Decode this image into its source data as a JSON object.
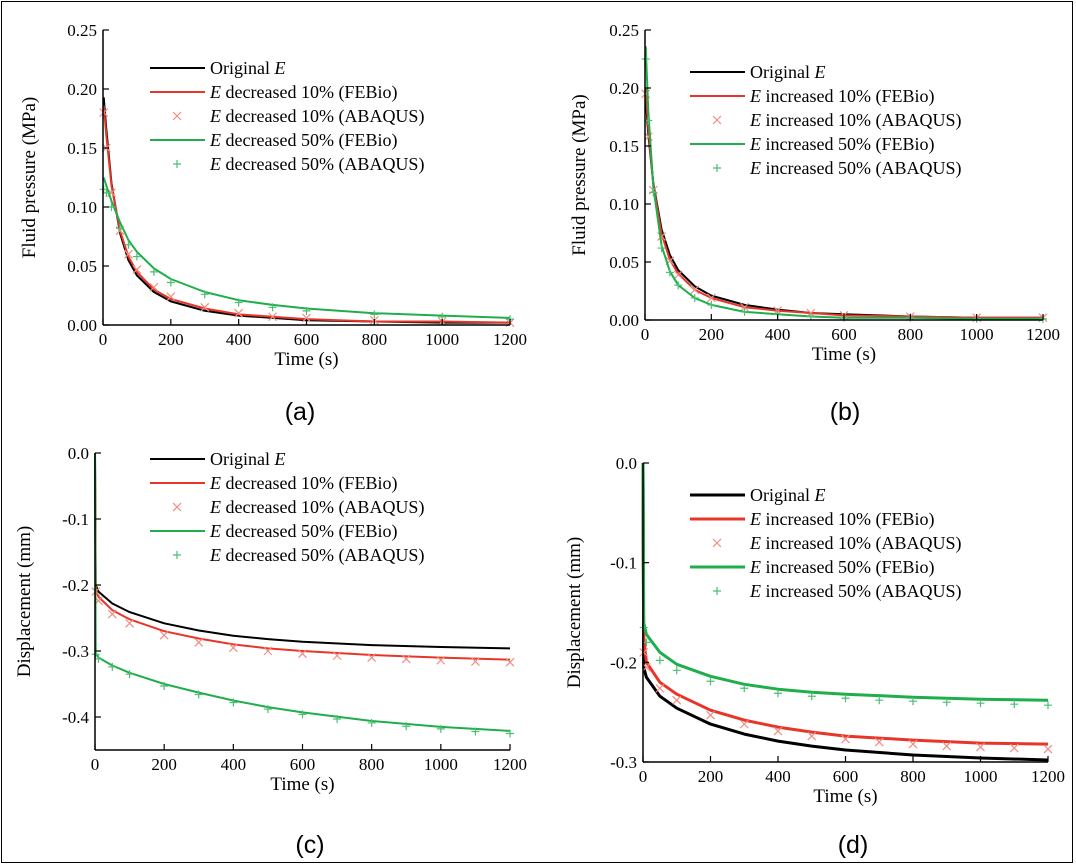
{
  "chart_data": [
    {
      "id": "a",
      "type": "line",
      "label": "(a)",
      "xlabel": "Time (s)",
      "ylabel": "Fluid pressure (MPa)",
      "xlim": [
        0,
        1200
      ],
      "ylim": [
        0,
        0.25
      ],
      "xticks": [
        0,
        200,
        400,
        600,
        800,
        1000,
        1200
      ],
      "yticks": [
        0.0,
        0.05,
        0.1,
        0.15,
        0.2,
        0.25
      ],
      "ytick_labels": [
        "0.00",
        "0.05",
        "0.10",
        "0.15",
        "0.20",
        "0.25"
      ],
      "legend_position": "top-right",
      "series": [
        {
          "name": "Original E",
          "prefix": "Original ",
          "italic": "E",
          "suffix": "",
          "kind": "line",
          "color": "#000000",
          "x": [
            2,
            10,
            25,
            50,
            75,
            100,
            150,
            200,
            300,
            400,
            500,
            600,
            800,
            1000,
            1200
          ],
          "y": [
            0.193,
            0.165,
            0.12,
            0.078,
            0.055,
            0.042,
            0.028,
            0.02,
            0.012,
            0.008,
            0.006,
            0.004,
            0.003,
            0.002,
            0.002
          ]
        },
        {
          "name": "E decreased 10% (FEBio)",
          "prefix": "",
          "italic": "E",
          "suffix": " decreased 10% (FEBio)",
          "kind": "line",
          "color": "#e8352a",
          "x": [
            2,
            10,
            25,
            50,
            75,
            100,
            150,
            200,
            300,
            400,
            500,
            600,
            800,
            1000,
            1200
          ],
          "y": [
            0.186,
            0.16,
            0.118,
            0.08,
            0.058,
            0.045,
            0.03,
            0.022,
            0.014,
            0.009,
            0.007,
            0.005,
            0.003,
            0.003,
            0.002
          ]
        },
        {
          "name": "E decreased 10% (ABAQUS)",
          "prefix": "",
          "italic": "E",
          "suffix": " decreased 10% (ABAQUS)",
          "kind": "marker-x",
          "color": "#f28c80",
          "x": [
            2,
            10,
            25,
            50,
            75,
            100,
            150,
            200,
            300,
            400,
            500,
            600,
            800,
            1000,
            1200
          ],
          "y": [
            0.18,
            0.15,
            0.112,
            0.08,
            0.06,
            0.047,
            0.032,
            0.024,
            0.015,
            0.01,
            0.007,
            0.006,
            0.004,
            0.003,
            0.002
          ]
        },
        {
          "name": "E decreased 50% (FEBio)",
          "prefix": "",
          "italic": "E",
          "suffix": " decreased 50% (FEBio)",
          "kind": "line",
          "color": "#1fae4b",
          "x": [
            2,
            10,
            25,
            50,
            75,
            100,
            150,
            200,
            300,
            400,
            500,
            600,
            800,
            1000,
            1200
          ],
          "y": [
            0.125,
            0.118,
            0.105,
            0.087,
            0.072,
            0.062,
            0.048,
            0.039,
            0.028,
            0.021,
            0.017,
            0.014,
            0.01,
            0.008,
            0.006
          ]
        },
        {
          "name": "E decreased 50% (ABAQUS)",
          "prefix": "",
          "italic": "E",
          "suffix": " decreased 50% (ABAQUS)",
          "kind": "marker-plus",
          "color": "#4cbf73",
          "x": [
            2,
            10,
            25,
            50,
            75,
            100,
            150,
            200,
            300,
            400,
            500,
            600,
            800,
            1000,
            1200
          ],
          "y": [
            0.115,
            0.112,
            0.1,
            0.082,
            0.068,
            0.058,
            0.045,
            0.036,
            0.026,
            0.019,
            0.015,
            0.012,
            0.009,
            0.007,
            0.005
          ]
        }
      ]
    },
    {
      "id": "b",
      "type": "line",
      "label": "(b)",
      "xlabel": "Time (s)",
      "ylabel": "Fluid pressure (MPa)",
      "xlim": [
        0,
        1200
      ],
      "ylim": [
        0,
        0.25
      ],
      "xticks": [
        0,
        200,
        400,
        600,
        800,
        1000,
        1200
      ],
      "yticks": [
        0.0,
        0.05,
        0.1,
        0.15,
        0.2,
        0.25
      ],
      "ytick_labels": [
        "0.00",
        "0.05",
        "0.10",
        "0.15",
        "0.20",
        "0.25"
      ],
      "legend_position": "top-right",
      "series": [
        {
          "name": "Original E",
          "prefix": "Original ",
          "italic": "E",
          "suffix": "",
          "kind": "line",
          "color": "#000000",
          "x": [
            2,
            10,
            25,
            50,
            75,
            100,
            150,
            200,
            300,
            400,
            500,
            600,
            800,
            1000,
            1200
          ],
          "y": [
            0.19,
            0.16,
            0.118,
            0.078,
            0.056,
            0.043,
            0.029,
            0.021,
            0.013,
            0.009,
            0.006,
            0.005,
            0.003,
            0.002,
            0.002
          ]
        },
        {
          "name": "E increased 10% (FEBio)",
          "prefix": "",
          "italic": "E",
          "suffix": " increased 10% (FEBio)",
          "kind": "line",
          "color": "#e8352a",
          "x": [
            2,
            10,
            25,
            50,
            75,
            100,
            150,
            200,
            300,
            400,
            500,
            600,
            800,
            1000,
            1200
          ],
          "y": [
            0.2,
            0.165,
            0.117,
            0.074,
            0.052,
            0.04,
            0.026,
            0.019,
            0.011,
            0.008,
            0.006,
            0.004,
            0.003,
            0.002,
            0.002
          ]
        },
        {
          "name": "E increased 10% (ABAQUS)",
          "prefix": "",
          "italic": "E",
          "suffix": " increased 10% (ABAQUS)",
          "kind": "marker-x",
          "color": "#f28c80",
          "x": [
            2,
            10,
            25,
            50,
            75,
            100,
            150,
            200,
            300,
            400,
            500,
            600,
            800,
            1000,
            1200
          ],
          "y": [
            0.195,
            0.158,
            0.112,
            0.072,
            0.051,
            0.039,
            0.026,
            0.019,
            0.011,
            0.008,
            0.006,
            0.004,
            0.003,
            0.002,
            0.002
          ]
        },
        {
          "name": "E increased 50% (FEBio)",
          "prefix": "",
          "italic": "E",
          "suffix": " increased 50% (FEBio)",
          "kind": "line",
          "color": "#1fae4b",
          "x": [
            2,
            10,
            25,
            50,
            75,
            100,
            150,
            200,
            300,
            400,
            500,
            600,
            800,
            1000,
            1200
          ],
          "y": [
            0.236,
            0.18,
            0.115,
            0.064,
            0.042,
            0.03,
            0.019,
            0.013,
            0.007,
            0.005,
            0.003,
            0.002,
            0.002,
            0.001,
            0.001
          ]
        },
        {
          "name": "E increased 50% (ABAQUS)",
          "prefix": "",
          "italic": "E",
          "suffix": " increased 50% (ABAQUS)",
          "kind": "marker-plus",
          "color": "#4cbf73",
          "x": [
            2,
            10,
            25,
            50,
            75,
            100,
            150,
            200,
            300,
            400,
            500,
            600,
            800,
            1000,
            1200
          ],
          "y": [
            0.225,
            0.172,
            0.11,
            0.062,
            0.041,
            0.03,
            0.019,
            0.013,
            0.007,
            0.005,
            0.003,
            0.002,
            0.002,
            0.001,
            0.001
          ]
        }
      ]
    },
    {
      "id": "c",
      "type": "line",
      "label": "(c)",
      "xlabel": "Time (s)",
      "ylabel": "Displacement (mm)",
      "xlim": [
        0,
        1200
      ],
      "ylim": [
        -0.45,
        0.0
      ],
      "xticks": [
        0,
        200,
        400,
        600,
        800,
        1000,
        1200
      ],
      "yticks": [
        0.0,
        -0.1,
        -0.2,
        -0.3,
        -0.4
      ],
      "ytick_labels": [
        "0.0",
        "-0.1",
        "-0.2",
        "-0.3",
        "-0.4"
      ],
      "legend_position": "top-right",
      "series": [
        {
          "name": "Original E",
          "prefix": "Original ",
          "italic": "E",
          "suffix": "",
          "kind": "line",
          "color": "#000000",
          "x": [
            0,
            2,
            10,
            50,
            100,
            200,
            300,
            400,
            500,
            600,
            800,
            1000,
            1200
          ],
          "y": [
            0.0,
            -0.2,
            -0.21,
            -0.228,
            -0.241,
            -0.258,
            -0.269,
            -0.277,
            -0.282,
            -0.286,
            -0.291,
            -0.294,
            -0.296
          ]
        },
        {
          "name": "E decreased 10% (FEBio)",
          "prefix": "",
          "italic": "E",
          "suffix": " decreased 10% (FEBio)",
          "kind": "line",
          "color": "#e8352a",
          "x": [
            0,
            2,
            10,
            50,
            100,
            200,
            300,
            400,
            500,
            600,
            800,
            1000,
            1200
          ],
          "y": [
            0.0,
            -0.205,
            -0.218,
            -0.238,
            -0.252,
            -0.27,
            -0.281,
            -0.29,
            -0.296,
            -0.3,
            -0.306,
            -0.31,
            -0.313
          ]
        },
        {
          "name": "E decreased 10% (ABAQUS)",
          "prefix": "",
          "italic": "E",
          "suffix": " decreased 10% (ABAQUS)",
          "kind": "marker-x",
          "color": "#f28c80",
          "x": [
            2,
            10,
            50,
            100,
            200,
            300,
            400,
            500,
            600,
            700,
            800,
            900,
            1000,
            1100,
            1200
          ],
          "y": [
            -0.21,
            -0.224,
            -0.244,
            -0.258,
            -0.276,
            -0.287,
            -0.295,
            -0.3,
            -0.304,
            -0.307,
            -0.31,
            -0.312,
            -0.314,
            -0.316,
            -0.317
          ]
        },
        {
          "name": "E decreased 50% (FEBio)",
          "prefix": "",
          "italic": "E",
          "suffix": " decreased 50% (FEBio)",
          "kind": "line",
          "color": "#1fae4b",
          "x": [
            0,
            2,
            10,
            50,
            100,
            200,
            300,
            400,
            500,
            600,
            800,
            1000,
            1200
          ],
          "y": [
            0.0,
            -0.303,
            -0.31,
            -0.322,
            -0.333,
            -0.35,
            -0.363,
            -0.375,
            -0.385,
            -0.393,
            -0.406,
            -0.415,
            -0.421
          ]
        },
        {
          "name": "E decreased 50% (ABAQUS)",
          "prefix": "",
          "italic": "E",
          "suffix": " decreased 50% (ABAQUS)",
          "kind": "marker-plus",
          "color": "#4cbf73",
          "x": [
            2,
            10,
            50,
            100,
            200,
            300,
            400,
            500,
            600,
            700,
            800,
            900,
            1000,
            1100,
            1200
          ],
          "y": [
            -0.305,
            -0.312,
            -0.324,
            -0.335,
            -0.353,
            -0.366,
            -0.378,
            -0.388,
            -0.396,
            -0.403,
            -0.409,
            -0.414,
            -0.418,
            -0.422,
            -0.425
          ]
        }
      ]
    },
    {
      "id": "d",
      "type": "line",
      "label": "(d)",
      "xlabel": "Time (s)",
      "ylabel": "Displacement (mm)",
      "xlim": [
        0,
        1200
      ],
      "ylim": [
        -0.3,
        0.0
      ],
      "xticks": [
        0,
        200,
        400,
        600,
        800,
        1000,
        1200
      ],
      "yticks": [
        0.0,
        -0.1,
        -0.2,
        -0.3
      ],
      "ytick_labels": [
        "0.0",
        "-0.1",
        "-0.2",
        "-0.3"
      ],
      "legend_position": "top-right",
      "series": [
        {
          "name": "Original E",
          "prefix": "Original ",
          "italic": "E",
          "suffix": "",
          "kind": "line",
          "color": "#000000",
          "x": [
            0,
            2,
            10,
            50,
            100,
            200,
            300,
            400,
            500,
            600,
            800,
            1000,
            1200
          ],
          "y": [
            0.0,
            -0.205,
            -0.215,
            -0.234,
            -0.246,
            -0.262,
            -0.272,
            -0.279,
            -0.284,
            -0.288,
            -0.293,
            -0.296,
            -0.298
          ]
        },
        {
          "name": "E increased 10% (FEBio)",
          "prefix": "",
          "italic": "E",
          "suffix": " increased 10% (FEBio)",
          "kind": "line",
          "color": "#e8352a",
          "x": [
            0,
            2,
            10,
            50,
            100,
            200,
            300,
            400,
            500,
            600,
            800,
            1000,
            1200
          ],
          "y": [
            0.0,
            -0.175,
            -0.2,
            -0.22,
            -0.232,
            -0.248,
            -0.258,
            -0.265,
            -0.27,
            -0.274,
            -0.278,
            -0.281,
            -0.282
          ]
        },
        {
          "name": "E increased 10% (ABAQUS)",
          "prefix": "",
          "italic": "E",
          "suffix": " increased 10% (ABAQUS)",
          "kind": "marker-x",
          "color": "#f28c80",
          "x": [
            2,
            10,
            50,
            100,
            200,
            300,
            400,
            500,
            600,
            700,
            800,
            900,
            1000,
            1100,
            1200
          ],
          "y": [
            -0.19,
            -0.205,
            -0.226,
            -0.238,
            -0.253,
            -0.262,
            -0.269,
            -0.274,
            -0.277,
            -0.28,
            -0.282,
            -0.284,
            -0.285,
            -0.286,
            -0.287
          ]
        },
        {
          "name": "E increased 50% (FEBio)",
          "prefix": "",
          "italic": "E",
          "suffix": " increased 50% (FEBio)",
          "kind": "line",
          "color": "#1fae4b",
          "x": [
            0,
            2,
            10,
            50,
            100,
            200,
            300,
            400,
            500,
            600,
            800,
            1000,
            1200
          ],
          "y": [
            0.0,
            -0.16,
            -0.172,
            -0.19,
            -0.202,
            -0.214,
            -0.222,
            -0.227,
            -0.23,
            -0.232,
            -0.235,
            -0.237,
            -0.238
          ]
        },
        {
          "name": "E increased 50% (ABAQUS)",
          "prefix": "",
          "italic": "E",
          "suffix": " increased 50% (ABAQUS)",
          "kind": "marker-plus",
          "color": "#4cbf73",
          "x": [
            2,
            10,
            50,
            100,
            200,
            300,
            400,
            500,
            600,
            700,
            800,
            900,
            1000,
            1100,
            1200
          ],
          "y": [
            -0.165,
            -0.18,
            -0.198,
            -0.208,
            -0.219,
            -0.226,
            -0.231,
            -0.234,
            -0.236,
            -0.238,
            -0.239,
            -0.24,
            -0.241,
            -0.242,
            -0.243
          ]
        }
      ]
    }
  ]
}
